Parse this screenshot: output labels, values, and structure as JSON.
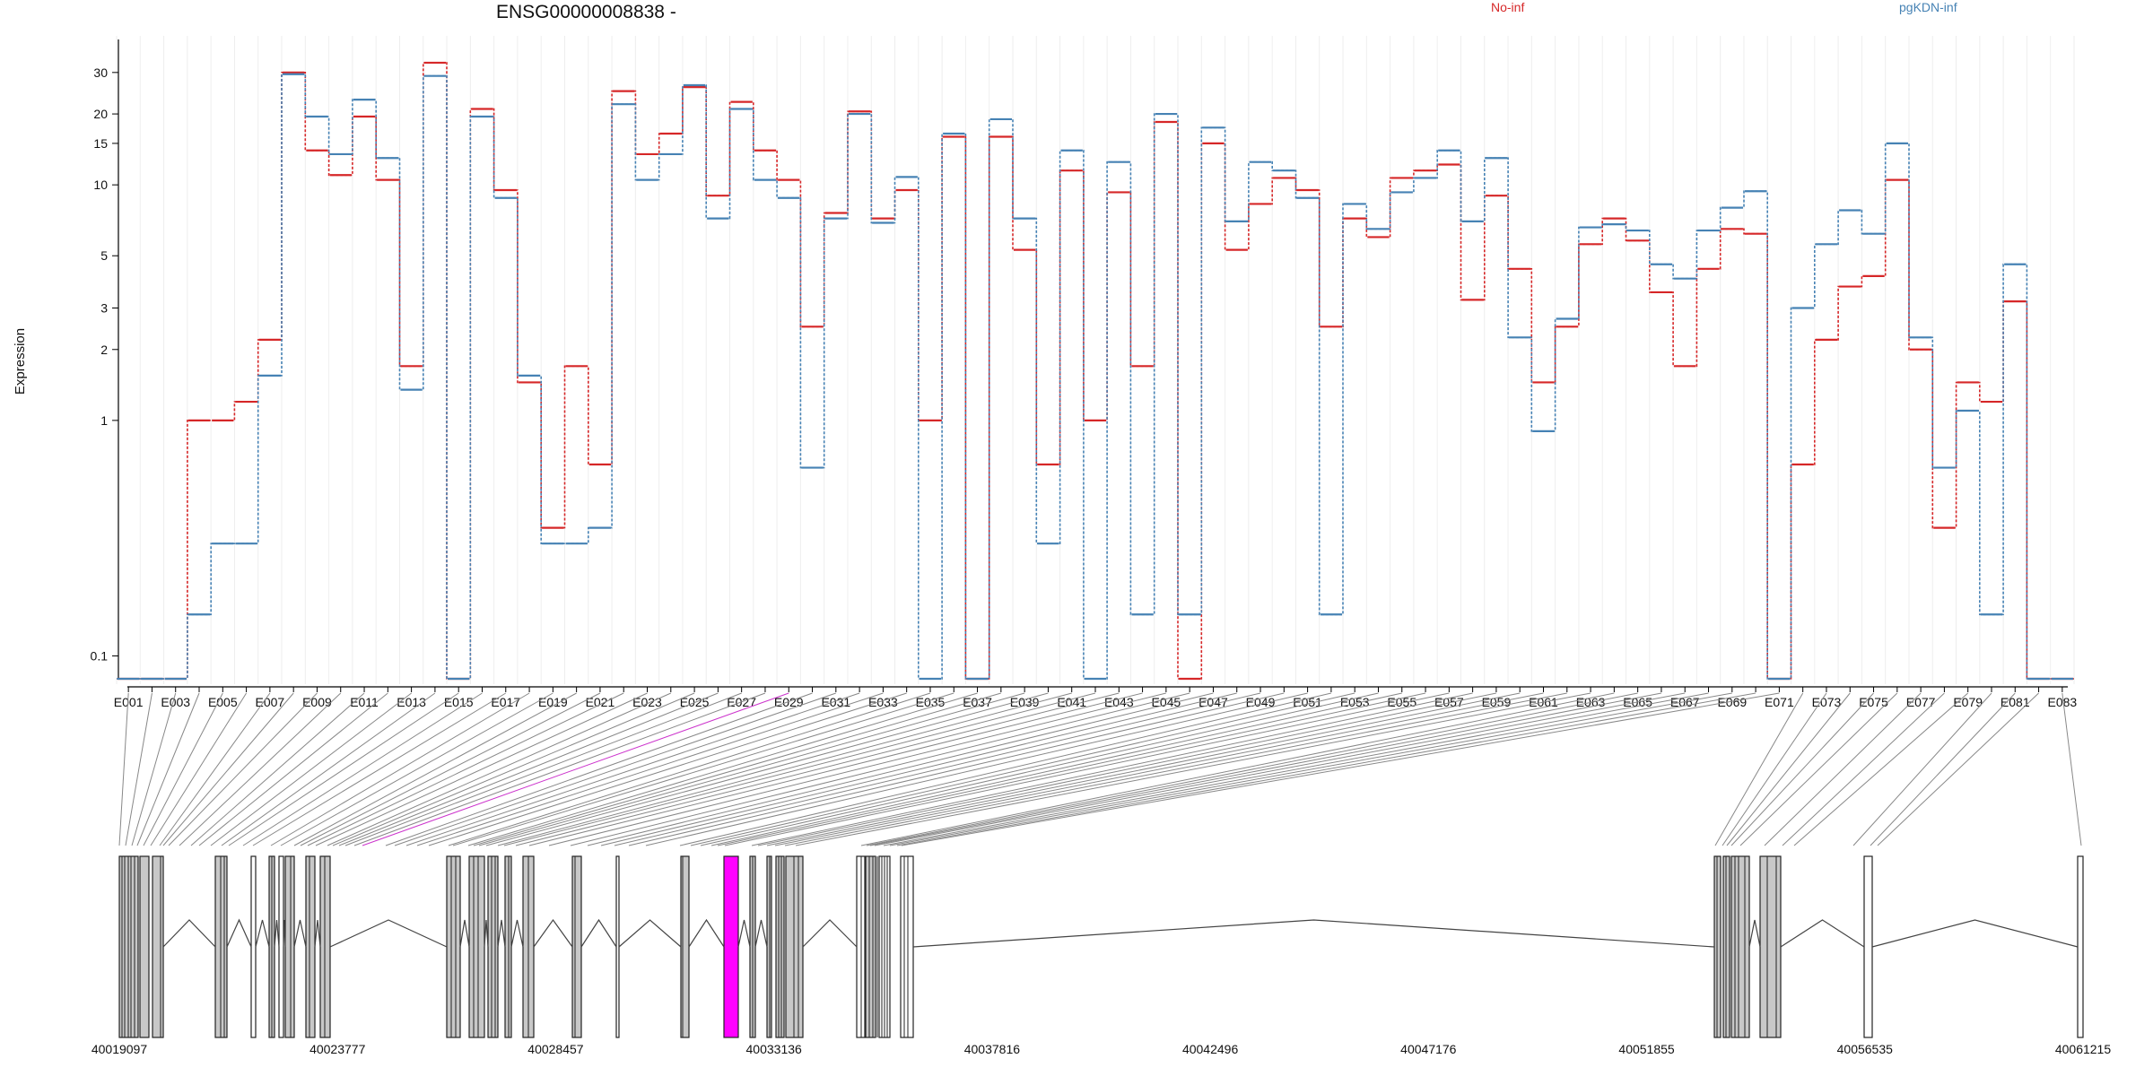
{
  "chart_data": {
    "type": "line",
    "title": "ENSG00000008838 -",
    "ylabel": "Expression",
    "y_scale": "log",
    "yticks": [
      0.1,
      1,
      2,
      3,
      5,
      10,
      15,
      20,
      30
    ],
    "ylim": [
      0.08,
      40
    ],
    "step_style": "dotted-step",
    "categories": [
      "E001",
      "E002",
      "E003",
      "E004",
      "E005",
      "E006",
      "E007",
      "E008",
      "E009",
      "E010",
      "E011",
      "E012",
      "E013",
      "E014",
      "E015",
      "E016",
      "E017",
      "E018",
      "E019",
      "E020",
      "E021",
      "E022",
      "E023",
      "E024",
      "E025",
      "E026",
      "E027",
      "E028",
      "E029",
      "E030",
      "E031",
      "E032",
      "E033",
      "E034",
      "E035",
      "E036",
      "E037",
      "E038",
      "E039",
      "E040",
      "E041",
      "E042",
      "E043",
      "E044",
      "E045",
      "E046",
      "E047",
      "E048",
      "E049",
      "E050",
      "E051",
      "E052",
      "E053",
      "E054",
      "E055",
      "E056",
      "E057",
      "E058",
      "E059",
      "E060",
      "E061",
      "E062",
      "E063",
      "E064",
      "E065",
      "E066",
      "E067",
      "E068",
      "E069",
      "E070",
      "E071",
      "E072",
      "E073",
      "E074",
      "E075",
      "E076",
      "E077",
      "E078",
      "E079",
      "E080",
      "E081",
      "E082",
      "E083"
    ],
    "series": [
      {
        "name": "No-inf",
        "color": "#d62728",
        "values": [
          0.08,
          0.08,
          0.08,
          1.0,
          1.0,
          1.2,
          2.2,
          30,
          14,
          11,
          19.5,
          10.5,
          1.7,
          33,
          0.08,
          21,
          9.5,
          1.45,
          0.35,
          1.7,
          0.65,
          25,
          13.5,
          16.5,
          26,
          9,
          22.5,
          14,
          10.5,
          2.5,
          7.6,
          20.5,
          7.2,
          9.5,
          1.0,
          16,
          0.08,
          16,
          5.3,
          0.65,
          11.5,
          1.0,
          9.3,
          1.7,
          18.5,
          0.08,
          15,
          5.3,
          8.3,
          10.7,
          9.5,
          2.5,
          7.2,
          6.0,
          10.7,
          11.5,
          12.2,
          3.25,
          9.0,
          4.4,
          1.45,
          2.5,
          5.6,
          7.2,
          5.8,
          3.5,
          1.7,
          4.4,
          6.5,
          6.2,
          0.08,
          0.65,
          2.2,
          3.7,
          4.1,
          10.5,
          2.0,
          0.35,
          1.45,
          1.2,
          3.2,
          0.08,
          0.08
        ]
      },
      {
        "name": "pgKDN-inf",
        "color": "#4682b4",
        "values": [
          0.08,
          0.08,
          0.08,
          0.15,
          0.3,
          0.3,
          1.55,
          29.5,
          19.5,
          13.5,
          23,
          13,
          1.35,
          29,
          0.08,
          19.5,
          8.8,
          1.55,
          0.3,
          0.3,
          0.35,
          22,
          10.5,
          13.5,
          26.5,
          7.2,
          21,
          10.5,
          8.8,
          0.63,
          7.2,
          20,
          6.9,
          10.8,
          0.08,
          16.5,
          0.08,
          19,
          7.2,
          0.3,
          14,
          0.08,
          12.5,
          0.15,
          20,
          0.15,
          17.5,
          7,
          12.5,
          11.5,
          8.8,
          0.15,
          8.3,
          6.5,
          9.3,
          10.7,
          14,
          7,
          13,
          2.25,
          0.9,
          2.7,
          6.6,
          6.8,
          6.4,
          4.6,
          4.0,
          6.4,
          8.0,
          9.4,
          0.08,
          3.0,
          5.6,
          7.8,
          6.2,
          15,
          2.25,
          0.63,
          1.1,
          0.15,
          4.6,
          0.08,
          0.08
        ]
      }
    ],
    "genome_track": {
      "axis_ticks": [
        "40019097",
        "40023777",
        "40028457",
        "40033136",
        "40037816",
        "40042496",
        "40047176",
        "40051855",
        "40056535",
        "40061215"
      ],
      "highlight_exon": "E029",
      "highlight_color": "#ff00ff"
    },
    "grid": "vertical-faint",
    "legend_placement": "top-right"
  }
}
